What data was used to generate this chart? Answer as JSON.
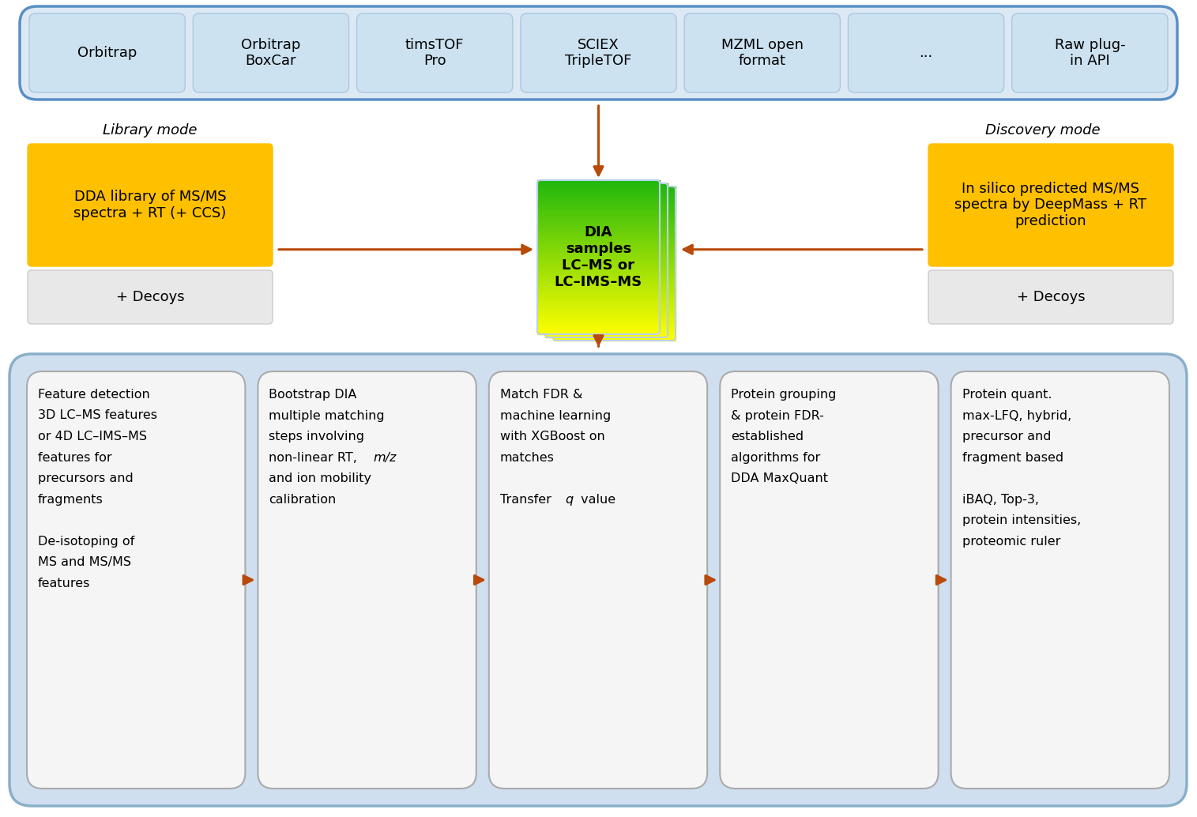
{
  "bg_color": "#ffffff",
  "top_box": {
    "border_color": "#5a8fc5",
    "fill_color": "#dce9f5",
    "items": [
      "Orbitrap",
      "Orbitrap\nBoxCar",
      "timsTOF\nPro",
      "SCIEX\nTripleTOF",
      "MZML open\nformat",
      "...",
      "Raw plug-\nin API"
    ],
    "item_fill": "#cce2f0",
    "item_border": "#aac8e0"
  },
  "arrow_color": "#b84a0a",
  "library_mode_label": "Library mode",
  "discovery_mode_label": "Discovery mode",
  "left_orange_box_text": "DDA library of MS/MS\nspectra + RT (+ CCS)",
  "left_gray_box_text": "+ Decoys",
  "right_orange_box_text": "In silico predicted MS/MS\nspectra by DeepMass + RT\nprediction",
  "right_gray_box_text": "+ Decoys",
  "orange_color": "#FFC000",
  "gray_box_color": "#e8e8e8",
  "gray_box_border": "#cccccc",
  "dia_text": "DIA\nsamples\nLC–MS or\nLC–IMS–MS",
  "bottom_panel": {
    "outer_fill": "#d0dff0",
    "outer_border": "#8aafc8",
    "inner_fill": "#f5f5f5",
    "inner_border": "#aaaaaa"
  },
  "bottom_boxes": [
    {
      "line1": "Feature detection",
      "line2": "3D LC–MS features",
      "line3": "or 4D LC–IMS–MS",
      "line4": "features for",
      "line5": "precursors and",
      "line6": "fragments",
      "line7": "",
      "line8": "De-isotoping of",
      "line9": "MS and MS/MS",
      "line10": "features"
    },
    {
      "line1": "Bootstrap DIA",
      "line2": "multiple matching",
      "line3": "steps involving",
      "line4": "non-linear RT,",
      "italic4": true,
      "mz": true,
      "line5": "and ion mobility",
      "line6": "calibration"
    },
    {
      "line1": "Match FDR &",
      "line2": "machine learning",
      "line3": "with XGBoost on",
      "line4": "matches",
      "line5": "",
      "line6": "Transfer",
      "italic_q": true,
      "line7": "value"
    },
    {
      "line1": "Protein grouping",
      "line2": "& protein FDR-",
      "line3": "established",
      "line4": "algorithms for",
      "line5": "DDA MaxQuant"
    },
    {
      "line1": "Protein quant.",
      "line2": "max-LFQ, hybrid,",
      "line3": "precursor and",
      "line4": "fragment based",
      "line5": "",
      "line6": "iBAQ, Top-3,",
      "line7": "protein intensities,",
      "line8": "proteomic ruler"
    }
  ]
}
